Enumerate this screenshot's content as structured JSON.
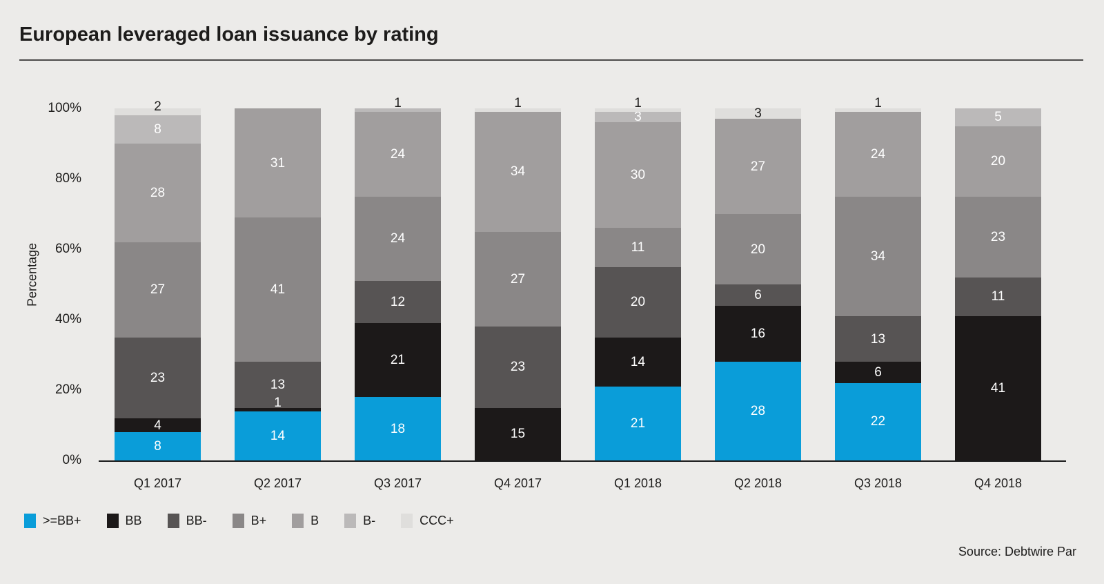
{
  "source_note": "Source: Debtwire Par",
  "chart_data": {
    "type": "bar",
    "stacked": true,
    "title": "European leveraged loan issuance by rating",
    "xlabel": "",
    "ylabel": "Percentage",
    "ylim": [
      0,
      100
    ],
    "yticks": [
      "0%",
      "20%",
      "40%",
      "60%",
      "80%",
      "100%"
    ],
    "grid": false,
    "legend_position": "bottom",
    "value_labels": true,
    "categories": [
      "Q1 2017",
      "Q2 2017",
      "Q3 2017",
      "Q4 2017",
      "Q1 2018",
      "Q2 2018",
      "Q3 2018",
      "Q4 2018"
    ],
    "series": [
      {
        "name": ">=BB+",
        "color": "#0A9DD9",
        "values": [
          8,
          14,
          18,
          0,
          21,
          28,
          22,
          0
        ]
      },
      {
        "name": "BB",
        "color": "#1C1919",
        "values": [
          4,
          1,
          21,
          15,
          14,
          16,
          6,
          41
        ]
      },
      {
        "name": "BB-",
        "color": "#575454",
        "values": [
          23,
          13,
          12,
          23,
          20,
          6,
          13,
          11
        ]
      },
      {
        "name": "B+",
        "color": "#8A8787",
        "values": [
          27,
          41,
          24,
          27,
          11,
          20,
          34,
          23
        ]
      },
      {
        "name": "B",
        "color": "#A19E9E",
        "values": [
          28,
          31,
          24,
          34,
          30,
          27,
          24,
          20
        ]
      },
      {
        "name": "B-",
        "color": "#BBB9B9",
        "values": [
          8,
          0,
          1,
          0,
          3,
          0,
          0,
          5
        ]
      },
      {
        "name": "CCC+",
        "color": "#DFDEDC",
        "values": [
          2,
          0,
          0,
          1,
          1,
          3,
          1,
          0
        ]
      }
    ],
    "label_dark_color": "#1D1C1B",
    "label_light_color": "#FFFFFF"
  }
}
